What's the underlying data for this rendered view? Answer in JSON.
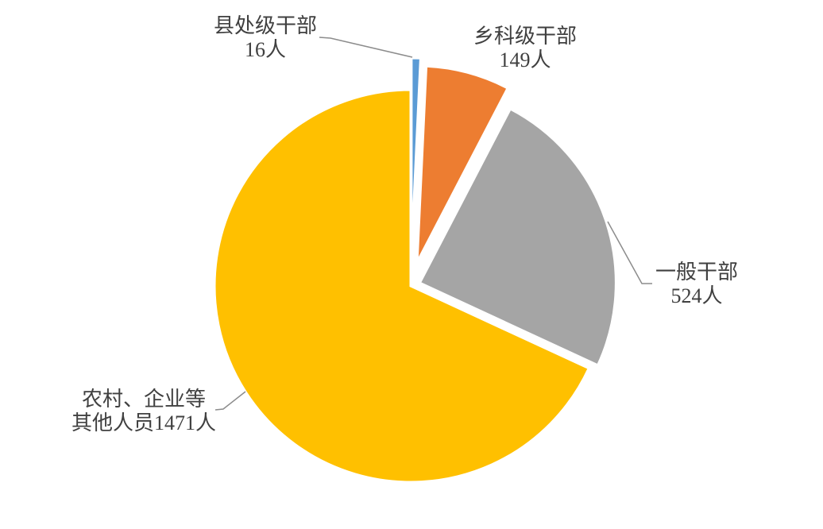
{
  "chart_data": {
    "type": "pie",
    "title": "",
    "unit": "人",
    "legend": "none",
    "background": "#FFFFFF",
    "label_color": "#404040",
    "leader_line_color": "#8C8C8C",
    "slice_border_color": "#FFFFFF",
    "slices": [
      {
        "id": "county-division-cadres",
        "name": "县处级干部",
        "value": 16,
        "color": "#5B9BD5",
        "exploded": true,
        "label_lines": [
          "县处级干部",
          "16人"
        ]
      },
      {
        "id": "township-section-cadres",
        "name": "乡科级干部",
        "value": 149,
        "color": "#ED7D31",
        "exploded": true,
        "label_lines": [
          "乡科级干部",
          "149人"
        ]
      },
      {
        "id": "general-cadres",
        "name": "一般干部",
        "value": 524,
        "color": "#A5A5A5",
        "exploded": true,
        "label_lines": [
          "一般干部",
          "524人"
        ]
      },
      {
        "id": "rural-enterprise-others",
        "name": "农村、企业等其他人员",
        "value": 1471,
        "color": "#FFC000",
        "exploded": false,
        "label_lines": [
          "农村、企业等",
          "其他人员1471人"
        ]
      }
    ]
  }
}
